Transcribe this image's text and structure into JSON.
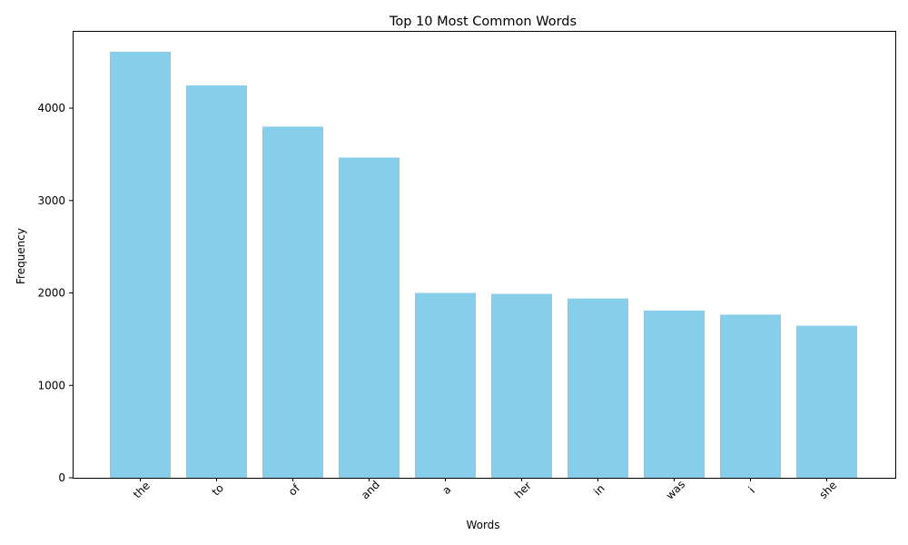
{
  "chart_data": {
    "type": "bar",
    "title": "Top 10 Most Common Words",
    "xlabel": "Words",
    "ylabel": "Frequency",
    "categories": [
      "the",
      "to",
      "of",
      "and",
      "a",
      "her",
      "in",
      "was",
      "i",
      "she"
    ],
    "values": [
      4610,
      4245,
      3800,
      3465,
      2000,
      1990,
      1940,
      1810,
      1765,
      1645
    ],
    "ylim": [
      0,
      4836
    ],
    "yticks": [
      0,
      1000,
      2000,
      3000,
      4000
    ],
    "bar_color": "#87ceeb",
    "grid": false,
    "legend": "none"
  }
}
